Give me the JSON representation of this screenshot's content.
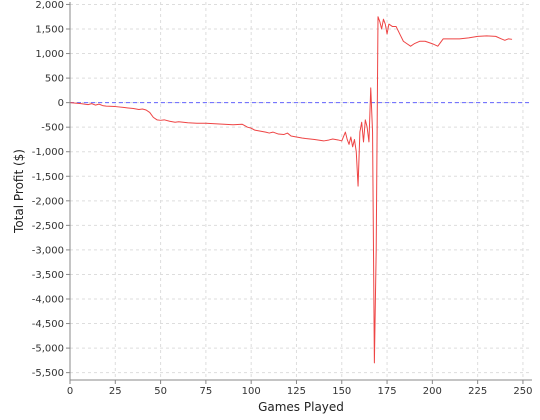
{
  "chart_data": {
    "type": "line",
    "title": "",
    "xlabel": "Games Played",
    "ylabel": "Total Profit ($)",
    "xlim": [
      0,
      255
    ],
    "ylim": [
      -5650,
      2050
    ],
    "x_ticks": [
      0,
      25,
      50,
      75,
      100,
      125,
      150,
      175,
      200,
      225,
      250
    ],
    "x_tick_labels": [
      "0",
      "25",
      "50",
      "75",
      "100",
      "125",
      "150",
      "175",
      "200",
      "225",
      "250"
    ],
    "y_ticks": [
      2000,
      1500,
      1000,
      500,
      0,
      -500,
      -1000,
      -1500,
      -2000,
      -2500,
      -3000,
      -3500,
      -4000,
      -4500,
      -5000,
      -5500
    ],
    "y_tick_labels": [
      "2,000",
      "1,500",
      "1,000",
      "500",
      "0",
      "-500",
      "-1,000",
      "-1,500",
      "-2,000",
      "-2,500",
      "-3,000",
      "-3,500",
      "-4,000",
      "-4,500",
      "-5,000",
      "-5,500"
    ],
    "grid": true,
    "reference_line": {
      "y": 0,
      "color": "#6666ff",
      "style": "dashed"
    },
    "series": [
      {
        "color": "#ee4444",
        "x": [
          0,
          3,
          6,
          8,
          10,
          12,
          14,
          16,
          18,
          20,
          25,
          30,
          35,
          38,
          40,
          42,
          44,
          46,
          48,
          50,
          52,
          55,
          58,
          60,
          65,
          70,
          75,
          80,
          85,
          90,
          95,
          98,
          100,
          102,
          105,
          108,
          110,
          112,
          115,
          118,
          120,
          122,
          125,
          128,
          130,
          135,
          140,
          143,
          145,
          148,
          150,
          152,
          153,
          154,
          155,
          156,
          157,
          158,
          159,
          160,
          161,
          162,
          163,
          164,
          165,
          166,
          167,
          168,
          169,
          170,
          171,
          172,
          173,
          174,
          175,
          176,
          178,
          180,
          182,
          184,
          186,
          188,
          190,
          193,
          196,
          200,
          203,
          206,
          210,
          215,
          220,
          225,
          230,
          235,
          238,
          240,
          242,
          244
        ],
        "y": [
          0,
          -10,
          -20,
          -30,
          -40,
          -20,
          -50,
          -30,
          -60,
          -70,
          -80,
          -100,
          -120,
          -140,
          -130,
          -150,
          -200,
          -300,
          -350,
          -360,
          -350,
          -380,
          -400,
          -390,
          -410,
          -420,
          -420,
          -430,
          -440,
          -450,
          -440,
          -500,
          -520,
          -560,
          -580,
          -600,
          -620,
          -600,
          -640,
          -650,
          -620,
          -680,
          -700,
          -720,
          -730,
          -750,
          -780,
          -760,
          -740,
          -760,
          -780,
          -600,
          -750,
          -850,
          -700,
          -900,
          -750,
          -1000,
          -1700,
          -600,
          -400,
          -800,
          -350,
          -500,
          -800,
          300,
          -600,
          -5300,
          -3000,
          1750,
          1650,
          1500,
          1700,
          1600,
          1400,
          1600,
          1550,
          1550,
          1400,
          1250,
          1200,
          1150,
          1200,
          1250,
          1250,
          1200,
          1150,
          1300,
          1300,
          1300,
          1320,
          1350,
          1360,
          1350,
          1300,
          1270,
          1300,
          1290
        ]
      }
    ]
  }
}
